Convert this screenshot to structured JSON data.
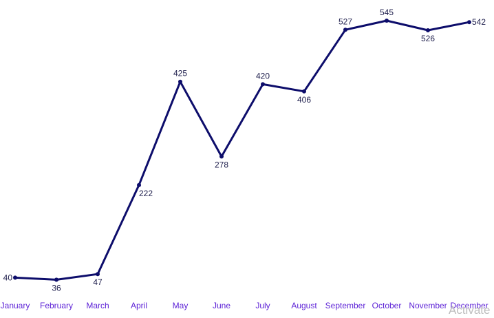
{
  "chart_data": {
    "type": "line",
    "categories": [
      "January",
      "February",
      "March",
      "April",
      "May",
      "June",
      "July",
      "August",
      "September",
      "October",
      "November",
      "December"
    ],
    "series": [
      {
        "values": [
          40,
          36,
          47,
          222,
          425,
          278,
          420,
          406,
          527,
          545,
          526,
          542
        ],
        "color": "#0d0d6b"
      }
    ],
    "ylim": [
      0,
      600
    ],
    "grid": false,
    "legend": "none",
    "tick_label_color": "#5b1fd6",
    "data_label_color": "#1f1f4d"
  },
  "overlay": {
    "watermark_text": "Activate"
  }
}
